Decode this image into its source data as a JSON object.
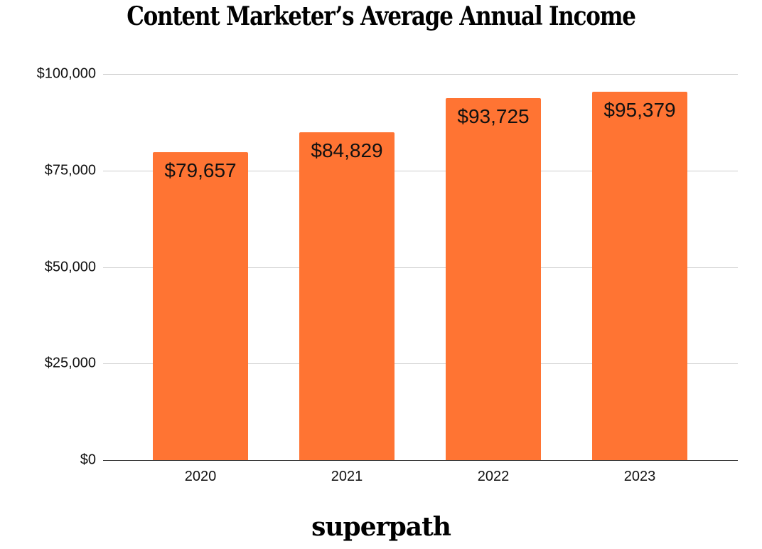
{
  "chart_data": {
    "type": "bar",
    "title": "Content Marketer’s Average Annual Income",
    "categories": [
      "2020",
      "2021",
      "2022",
      "2023"
    ],
    "values": [
      79657,
      84829,
      93725,
      95379
    ],
    "data_labels": [
      "$79,657",
      "$84,829",
      "$93,725",
      "$95,379"
    ],
    "xlabel": "",
    "ylabel": "",
    "ylim": [
      0,
      100000
    ],
    "yticks": [
      0,
      25000,
      50000,
      75000,
      100000
    ],
    "ytick_labels": [
      "$0",
      "$25,000",
      "$50,000",
      "$75,000",
      "$100,000"
    ],
    "grid": true,
    "legend": null,
    "bar_color": "#ff7433"
  },
  "header": {
    "title": "Content Marketer’s Average Annual Income"
  },
  "footer": {
    "brand": "superpath"
  }
}
